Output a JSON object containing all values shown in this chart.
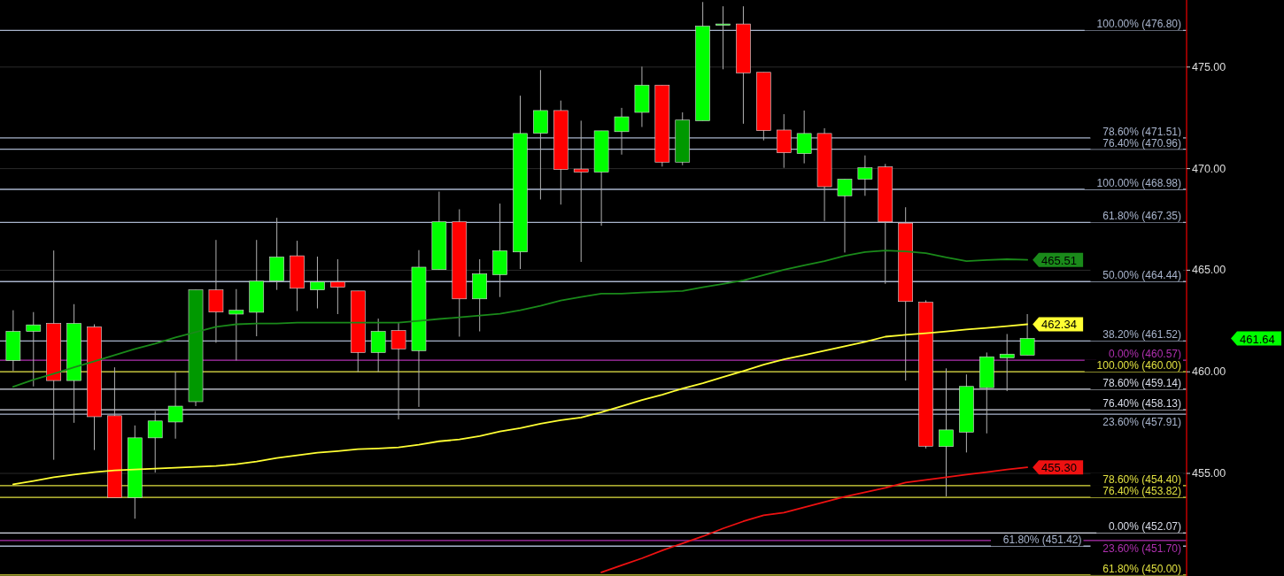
{
  "chart_data": {
    "type": "candlestick",
    "categories": [
      null,
      null,
      null,
      null,
      null,
      null,
      null,
      null,
      null,
      null,
      null,
      null,
      null,
      null,
      null,
      null,
      null,
      null,
      null,
      null,
      null,
      null,
      null,
      null,
      null,
      null,
      null,
      null,
      null,
      null,
      null,
      null,
      null,
      null,
      null,
      null,
      null,
      null,
      null,
      null,
      null,
      null,
      null,
      null,
      null,
      null,
      null,
      null,
      null,
      null,
      null
    ],
    "ohlc": [
      [
        460.56,
        463.03,
        460.04,
        461.99
      ],
      [
        461.99,
        462.94,
        459.28,
        462.31
      ],
      [
        462.38,
        465.97,
        455.67,
        459.57
      ],
      [
        459.57,
        463.33,
        457.49,
        462.38
      ],
      [
        462.21,
        462.34,
        456.15,
        457.79
      ],
      [
        457.84,
        460.22,
        453.81,
        453.81
      ],
      [
        453.81,
        457.36,
        452.77,
        456.75
      ],
      [
        456.75,
        458.07,
        455.04,
        457.58
      ],
      [
        457.53,
        460.0,
        456.71,
        458.31
      ],
      [
        458.53,
        464.03,
        458.31,
        464.03
      ],
      [
        464.03,
        466.49,
        461.43,
        462.94
      ],
      [
        462.84,
        464.07,
        460.56,
        463.03
      ],
      [
        462.93,
        466.49,
        461.75,
        464.46
      ],
      [
        464.48,
        467.58,
        464.03,
        465.65
      ],
      [
        465.71,
        466.45,
        462.99,
        464.11
      ],
      [
        464.03,
        465.67,
        463.12,
        464.42
      ],
      [
        464.42,
        465.54,
        462.84,
        464.16
      ],
      [
        463.98,
        463.98,
        460.0,
        460.95
      ],
      [
        460.95,
        462.62,
        460.0,
        461.99
      ],
      [
        462.03,
        462.4,
        457.66,
        461.13
      ],
      [
        461.04,
        465.99,
        458.27,
        465.15
      ],
      [
        465.03,
        468.87,
        465.03,
        467.38
      ],
      [
        467.38,
        468.0,
        461.73,
        463.59
      ],
      [
        463.59,
        465.54,
        461.99,
        464.82
      ],
      [
        464.78,
        468.28,
        463.68,
        465.96
      ],
      [
        465.9,
        473.59,
        465.06,
        471.73
      ],
      [
        471.74,
        474.85,
        468.48,
        472.86
      ],
      [
        472.86,
        473.35,
        468.23,
        469.96
      ],
      [
        469.98,
        472.36,
        465.41,
        469.83
      ],
      [
        469.83,
        471.86,
        467.19,
        471.86
      ],
      [
        471.82,
        472.99,
        470.69,
        472.55
      ],
      [
        472.77,
        475.02,
        472.05,
        474.11
      ],
      [
        474.11,
        474.11,
        470.1,
        470.32
      ],
      [
        470.32,
        472.77,
        470.17,
        472.39
      ],
      [
        472.36,
        478.2,
        472.36,
        477.01
      ],
      [
        477.06,
        477.99,
        474.89,
        477.12
      ],
      [
        477.12,
        477.99,
        472.21,
        474.71
      ],
      [
        474.74,
        474.74,
        471.39,
        471.87
      ],
      [
        471.9,
        472.68,
        470.04,
        470.78
      ],
      [
        470.74,
        472.86,
        470.26,
        471.73
      ],
      [
        471.73,
        471.99,
        467.42,
        469.11
      ],
      [
        468.66,
        469.48,
        465.87,
        469.48
      ],
      [
        469.48,
        470.65,
        468.66,
        470.04
      ],
      [
        470.09,
        470.23,
        464.33,
        467.38
      ],
      [
        467.32,
        468.1,
        459.57,
        463.46
      ],
      [
        463.42,
        463.52,
        456.23,
        456.34
      ],
      [
        456.32,
        460.17,
        453.87,
        457.14
      ],
      [
        457.03,
        459.87,
        456.03,
        459.28
      ],
      [
        459.22,
        460.95,
        456.97,
        460.74
      ],
      [
        460.69,
        461.86,
        459.05,
        460.87
      ],
      [
        460.82,
        462.84,
        460.82,
        461.64
      ]
    ],
    "colors": [
      "#00ff00",
      "#00ff00",
      "#ff0000",
      "#00ff00",
      "#ff0000",
      "#ff0000",
      "#00ff00",
      "#00ff00",
      "#00ff00",
      "#009900",
      "#ff0000",
      "#00ff00",
      "#00ff00",
      "#00ff00",
      "#ff0000",
      "#00ff00",
      "#ff0000",
      "#ff0000",
      "#00ff00",
      "#ff0000",
      "#00ff00",
      "#00ff00",
      "#ff0000",
      "#00ff00",
      "#00ff00",
      "#00ff00",
      "#00ff00",
      "#ff0000",
      "#ff0000",
      "#00ff00",
      "#00ff00",
      "#00ff00",
      "#ff0000",
      "#009900",
      "#00ff00",
      "#00ff00",
      "#ff0000",
      "#ff0000",
      "#ff0000",
      "#00ff00",
      "#ff0000",
      "#00ff00",
      "#00ff00",
      "#ff0000",
      "#ff0000",
      "#ff0000",
      "#00ff00",
      "#00ff00",
      "#00ff00",
      "#00ff00",
      "#00ff00"
    ],
    "series": [
      {
        "type": "line",
        "color": "#1a8a1a",
        "values": [
          459.26,
          459.61,
          459.91,
          460.22,
          460.52,
          460.82,
          461.13,
          461.39,
          461.69,
          461.95,
          462.21,
          462.34,
          462.38,
          462.38,
          462.42,
          462.42,
          462.42,
          462.42,
          462.42,
          462.42,
          462.51,
          462.6,
          462.68,
          462.77,
          462.86,
          463.03,
          463.25,
          463.51,
          463.68,
          463.85,
          463.85,
          463.9,
          463.94,
          463.98,
          464.16,
          464.33,
          464.5,
          464.76,
          465.02,
          465.24,
          465.45,
          465.71,
          465.89,
          465.97,
          465.93,
          465.84,
          465.63,
          465.45,
          465.5,
          465.54,
          465.51
        ],
        "value_labels": [
          null,
          null,
          null,
          null,
          null,
          null,
          null,
          null,
          null,
          null,
          null,
          null,
          null,
          null,
          null,
          null,
          null,
          null,
          null,
          null,
          null,
          null,
          null,
          null,
          null,
          null,
          null,
          null,
          null,
          null,
          null,
          null,
          null,
          null,
          null,
          null,
          null,
          null,
          null,
          null,
          null,
          null,
          null,
          null,
          null,
          null,
          null,
          null,
          null,
          null,
          "465.51"
        ]
      },
      {
        "type": "line",
        "color": "#ffff33",
        "values": [
          454.46,
          454.63,
          454.81,
          454.94,
          455.06,
          455.15,
          455.19,
          455.24,
          455.28,
          455.32,
          455.37,
          455.45,
          455.58,
          455.76,
          455.89,
          456.02,
          456.1,
          456.19,
          456.23,
          456.28,
          456.41,
          456.58,
          456.67,
          456.84,
          457.06,
          457.23,
          457.45,
          457.62,
          457.75,
          458.01,
          458.31,
          458.61,
          458.87,
          459.18,
          459.44,
          459.74,
          460.04,
          460.35,
          460.61,
          460.82,
          461.04,
          461.26,
          461.47,
          461.73,
          461.82,
          461.9,
          461.99,
          462.08,
          462.16,
          462.25,
          462.34
        ],
        "value_labels": [
          null,
          null,
          null,
          null,
          null,
          null,
          null,
          null,
          null,
          null,
          null,
          null,
          null,
          null,
          null,
          null,
          null,
          null,
          null,
          null,
          null,
          null,
          null,
          null,
          null,
          null,
          null,
          null,
          null,
          null,
          null,
          null,
          null,
          null,
          null,
          null,
          null,
          null,
          null,
          null,
          null,
          null,
          null,
          null,
          null,
          null,
          null,
          null,
          null,
          null,
          "462.34"
        ]
      },
      {
        "type": "line",
        "color": "#ee1111",
        "values": [
          null,
          null,
          null,
          null,
          null,
          null,
          null,
          null,
          null,
          null,
          null,
          null,
          null,
          null,
          null,
          null,
          null,
          null,
          null,
          null,
          null,
          null,
          null,
          null,
          null,
          null,
          null,
          null,
          null,
          450.13,
          450.48,
          450.82,
          451.21,
          451.56,
          451.9,
          452.29,
          452.64,
          452.94,
          453.07,
          453.33,
          453.59,
          453.85,
          454.07,
          454.29,
          454.55,
          454.68,
          454.81,
          454.94,
          455.06,
          455.19,
          455.3
        ],
        "value_labels": [
          null,
          null,
          null,
          null,
          null,
          null,
          null,
          null,
          null,
          null,
          null,
          null,
          null,
          null,
          null,
          null,
          null,
          null,
          null,
          null,
          null,
          null,
          null,
          null,
          null,
          null,
          null,
          null,
          null,
          null,
          null,
          null,
          null,
          null,
          null,
          null,
          null,
          null,
          null,
          null,
          null,
          null,
          null,
          null,
          null,
          null,
          null,
          null,
          null,
          null,
          "455.30"
        ]
      }
    ],
    "annotations": [
      "461.64"
    ],
    "ylim": [
      449.95,
      478.3
    ],
    "yticks": [
      {
        "value": 455,
        "label": "455.00"
      },
      {
        "value": 460,
        "label": "460.00"
      },
      {
        "value": 465,
        "label": "465.00"
      },
      {
        "value": 470,
        "label": "470.00"
      },
      {
        "value": 475,
        "label": "475.00"
      }
    ],
    "grid": "y",
    "ref_lines": [
      {
        "axis": "y",
        "value": 476.8,
        "label": "100.00% (476.80)",
        "color": "#a8b4cc"
      },
      {
        "axis": "y",
        "value": 471.51,
        "label": "78.60% (471.51)",
        "color": "#a8b4cc"
      },
      {
        "axis": "y",
        "value": 470.96,
        "label": "76.40% (470.96)",
        "color": "#a8b4cc"
      },
      {
        "axis": "y",
        "value": 468.98,
        "label": "100.00% (468.98)",
        "color": "#a8b4cc"
      },
      {
        "axis": "y",
        "value": 467.35,
        "label": "61.80% (467.35)",
        "color": "#a8b4cc"
      },
      {
        "axis": "y",
        "value": 464.44,
        "label": "50.00% (464.44)",
        "color": "#a8b4cc"
      },
      {
        "axis": "y",
        "value": 461.52,
        "label": "38.20% (461.52)",
        "color": "#a8b4cc"
      },
      {
        "axis": "y",
        "value": 460.57,
        "label": "0.00% (460.57)",
        "color": "#b030b0"
      },
      {
        "axis": "y",
        "value": 460.0,
        "label": "100.00% (460.00)",
        "color": "#e0e040"
      },
      {
        "axis": "y",
        "value": 459.14,
        "label": "78.60% (459.14)",
        "color": "#d8dce8"
      },
      {
        "axis": "y",
        "value": 458.13,
        "label": "76.40% (458.13)",
        "color": "#d8dce8"
      },
      {
        "axis": "y",
        "value": 457.91,
        "label": "23.60% (457.91)",
        "color": "#a8b4cc"
      },
      {
        "axis": "y",
        "value": 454.4,
        "label": "78.60% (454.40)",
        "color": "#e0e040"
      },
      {
        "axis": "y",
        "value": 453.82,
        "label": "76.40% (453.82)",
        "color": "#e0e040"
      },
      {
        "axis": "y",
        "value": 452.07,
        "label": "0.00% (452.07)",
        "color": "#d8dce8"
      },
      {
        "axis": "y",
        "value": 451.7,
        "label": "23.60% (451.70)",
        "color": "#b030b0"
      },
      {
        "axis": "y",
        "value": 451.42,
        "label": "61.80% (451.42)",
        "color": "#a8b4cc"
      },
      {
        "axis": "y",
        "value": 450.0,
        "label": "61.80% (450.00)",
        "color": "#e0e040"
      }
    ]
  }
}
